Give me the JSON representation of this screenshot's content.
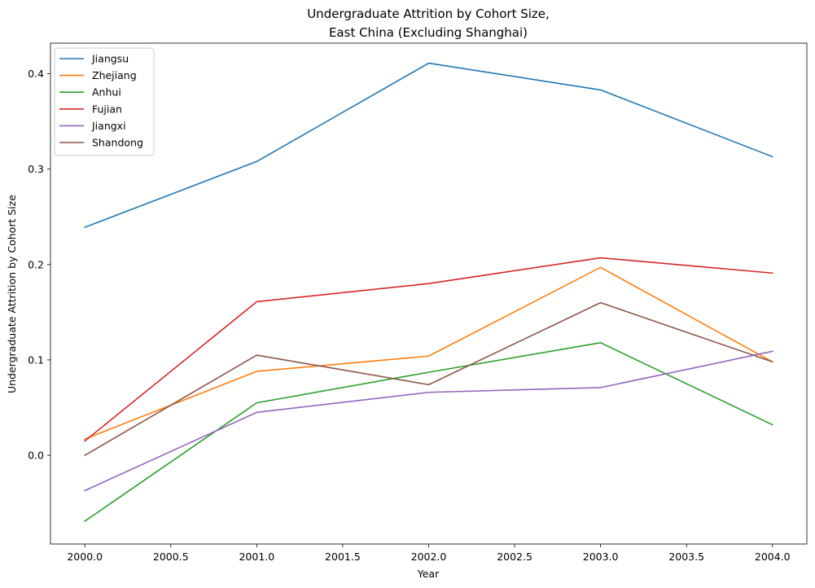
{
  "chart_data": {
    "type": "line",
    "title": [
      "Undergraduate Attrition by Cohort Size,",
      "East China (Excluding Shanghai)"
    ],
    "xlabel": "Year",
    "ylabel": "Undergraduate Attrition by Cohort Size",
    "x": [
      2000,
      2001,
      2002,
      2003,
      2004
    ],
    "xlim": [
      1999.8,
      2004.2
    ],
    "ylim": [
      -0.093,
      0.432
    ],
    "xticks": [
      2000.0,
      2000.5,
      2001.0,
      2001.5,
      2002.0,
      2002.5,
      2003.0,
      2003.5,
      2004.0
    ],
    "xtick_labels": [
      "2000.0",
      "2000.5",
      "2001.0",
      "2001.5",
      "2002.0",
      "2002.5",
      "2003.0",
      "2003.5",
      "2004.0"
    ],
    "yticks": [
      0.0,
      0.1,
      0.2,
      0.3,
      0.4
    ],
    "ytick_labels": [
      "0.0",
      "0.1",
      "0.2",
      "0.3",
      "0.4"
    ],
    "grid": false,
    "legend_position": "upper-left",
    "series": [
      {
        "name": "Jiangsu",
        "color": "#1f77b4",
        "values": [
          0.239,
          0.308,
          0.411,
          0.383,
          0.313
        ]
      },
      {
        "name": "Zhejiang",
        "color": "#ff7f0e",
        "values": [
          0.017,
          0.088,
          0.104,
          0.197,
          0.098
        ]
      },
      {
        "name": "Anhui",
        "color": "#2ca02c",
        "values": [
          -0.069,
          0.055,
          0.087,
          0.118,
          0.032
        ]
      },
      {
        "name": "Fujian",
        "color": "#d62728",
        "values": [
          0.015,
          0.161,
          0.18,
          0.207,
          0.191
        ]
      },
      {
        "name": "Jiangxi",
        "color": "#9467bd",
        "values": [
          -0.037,
          0.045,
          0.066,
          0.071,
          0.109
        ]
      },
      {
        "name": "Shandong",
        "color": "#8c564b",
        "values": [
          0.0,
          0.105,
          0.074,
          0.16,
          0.098
        ]
      }
    ]
  }
}
